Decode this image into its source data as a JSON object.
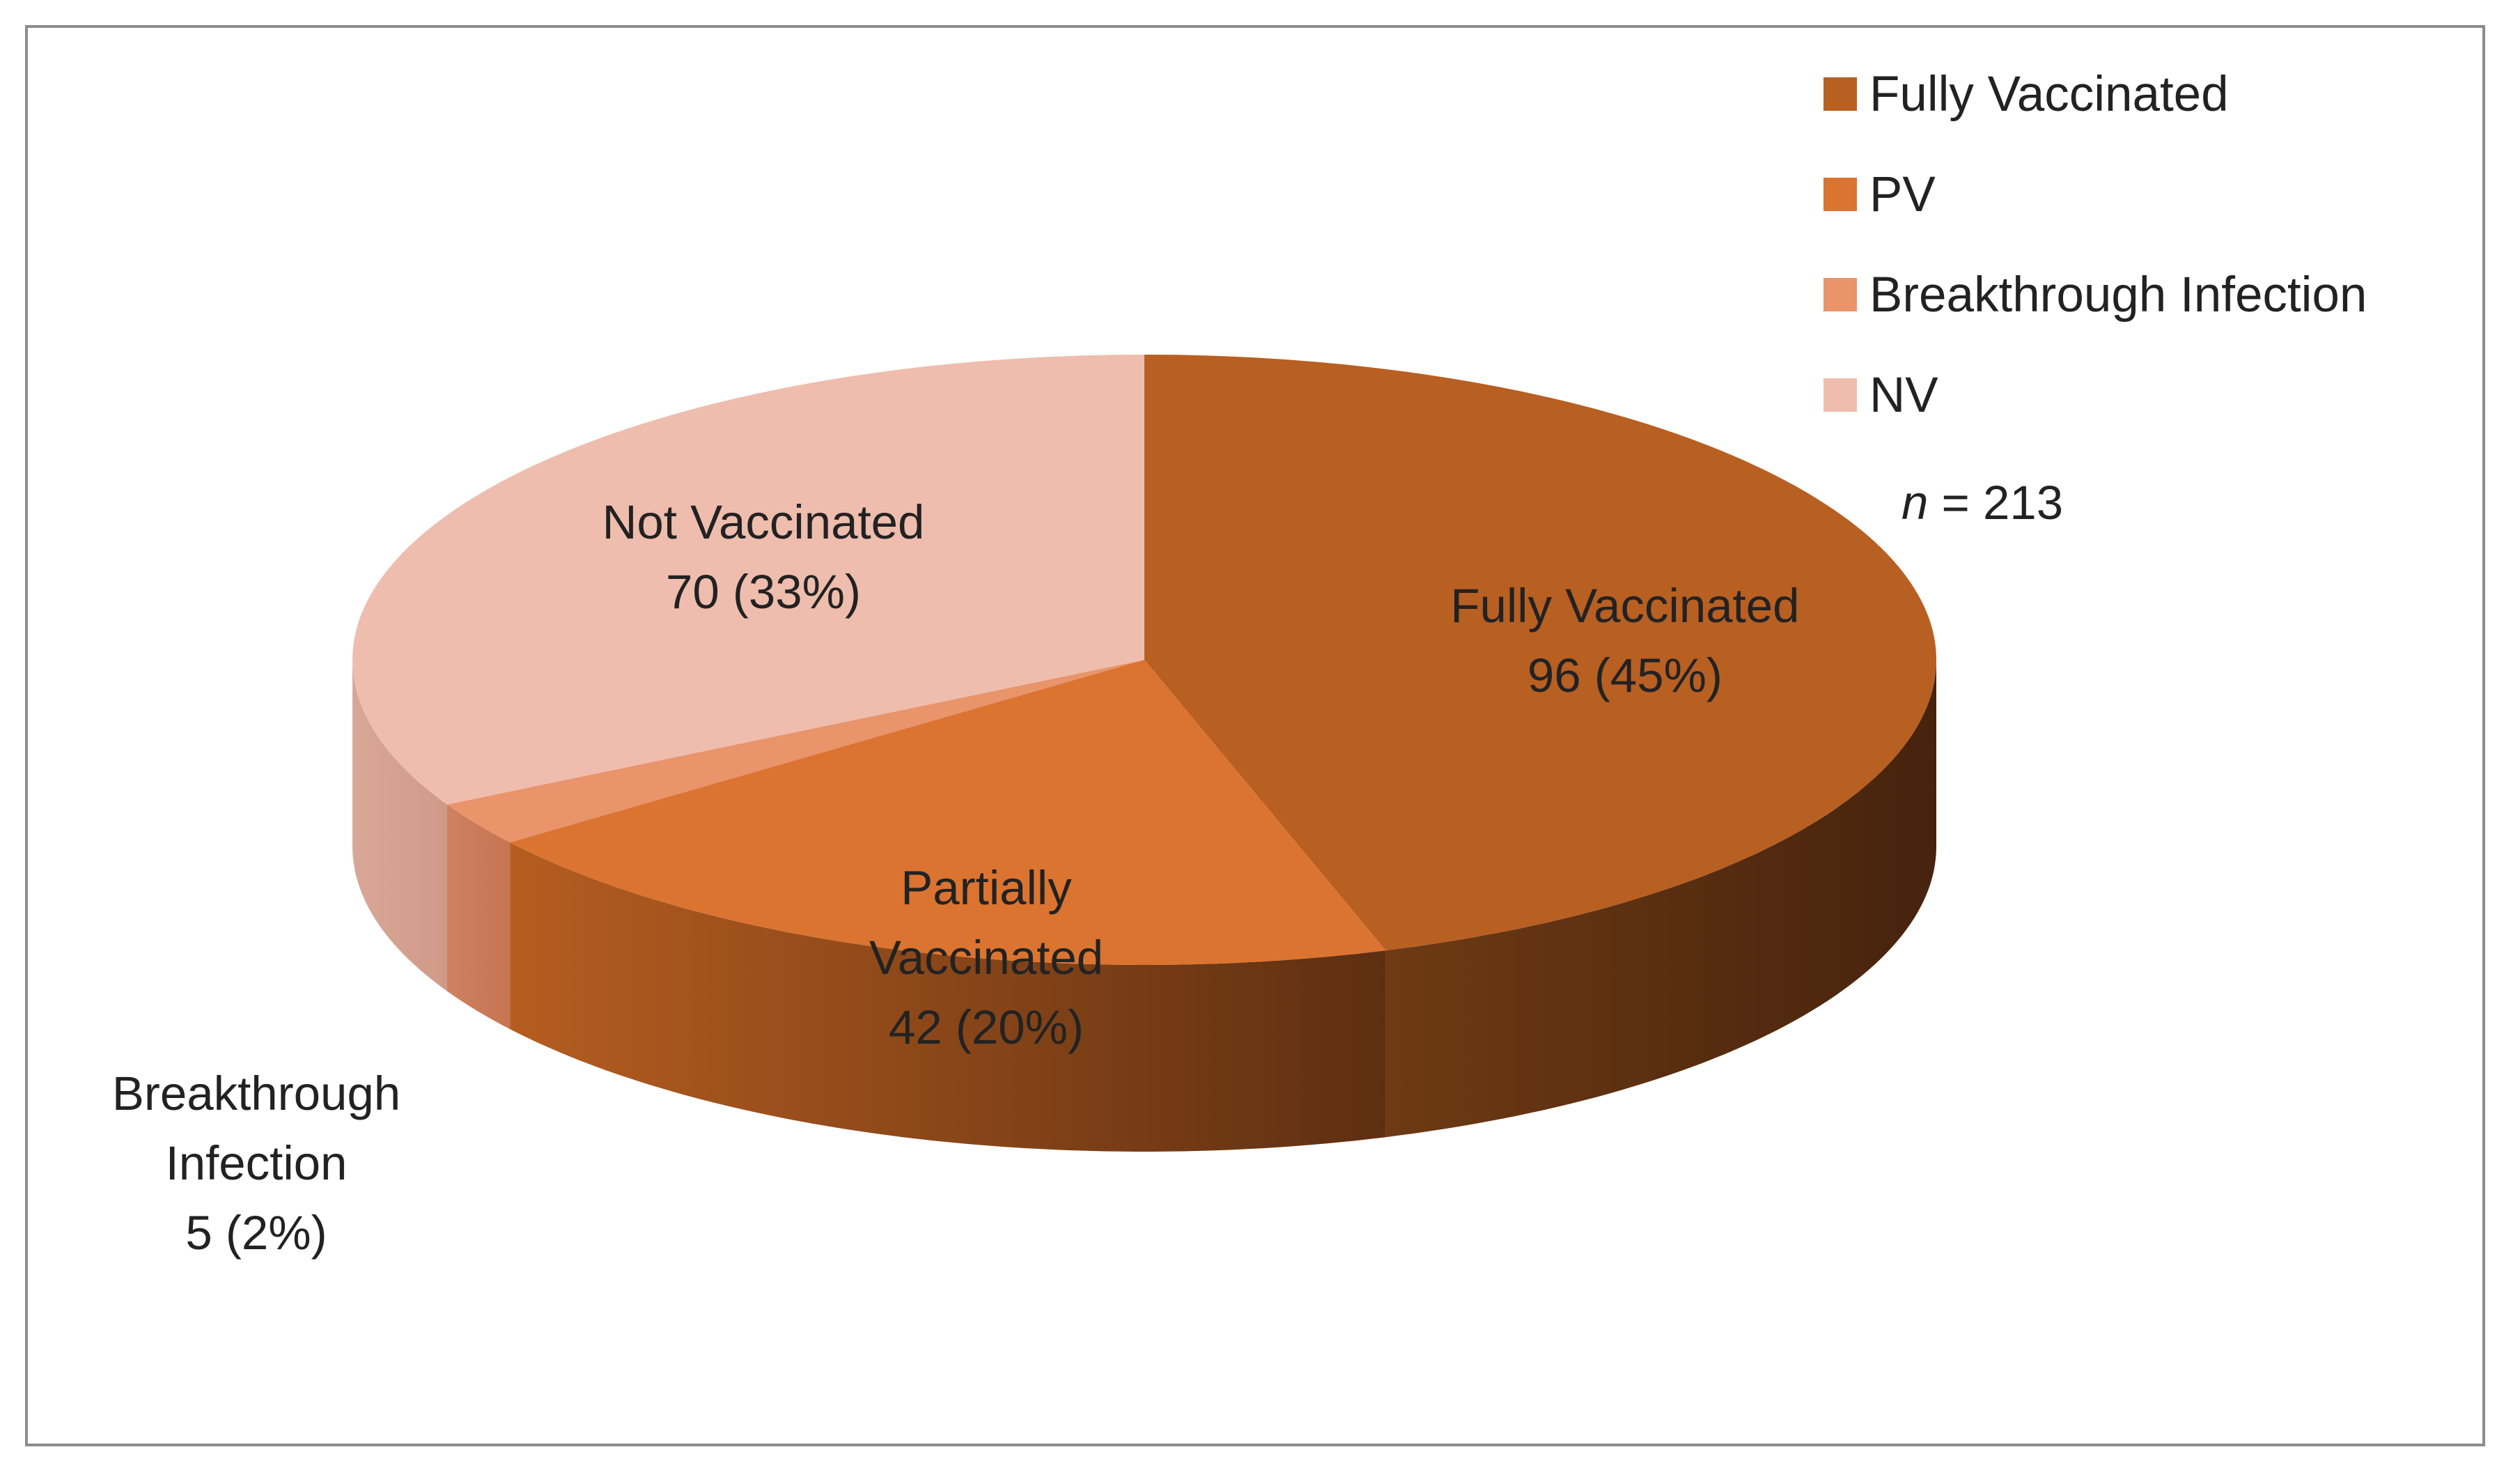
{
  "chart_data": {
    "type": "pie",
    "style": "3d",
    "categories": [
      "Fully Vaccinated",
      "Partially Vaccinated",
      "Breakthrough Infection",
      "Not Vaccinated"
    ],
    "values": [
      96,
      42,
      5,
      70
    ],
    "percent_labels": [
      "45%",
      "20%",
      "2%",
      "33%"
    ],
    "colors": [
      "#b85f22",
      "#db7430",
      "#e9946a",
      "#efbdad"
    ],
    "data_labels": [
      {
        "lines": [
          "Fully Vaccinated",
          "96 (45%)"
        ]
      },
      {
        "lines": [
          "Partially",
          "Vaccinated",
          "42 (20%)"
        ]
      },
      {
        "lines": [
          "Breakthrough",
          "Infection",
          "5 (2%)"
        ]
      },
      {
        "lines": [
          "Not Vaccinated",
          "70 (33%)"
        ]
      }
    ],
    "legend": {
      "position": "top-right",
      "entries": [
        {
          "label": "Fully Vaccinated",
          "color": "#b85f22"
        },
        {
          "label": "PV",
          "color": "#db7430"
        },
        {
          "label": "Breakthrough Infection",
          "color": "#e9946a"
        },
        {
          "label": "NV",
          "color": "#efbdad"
        }
      ]
    },
    "annotation": {
      "symbol": "n",
      "value": "= 213"
    }
  }
}
